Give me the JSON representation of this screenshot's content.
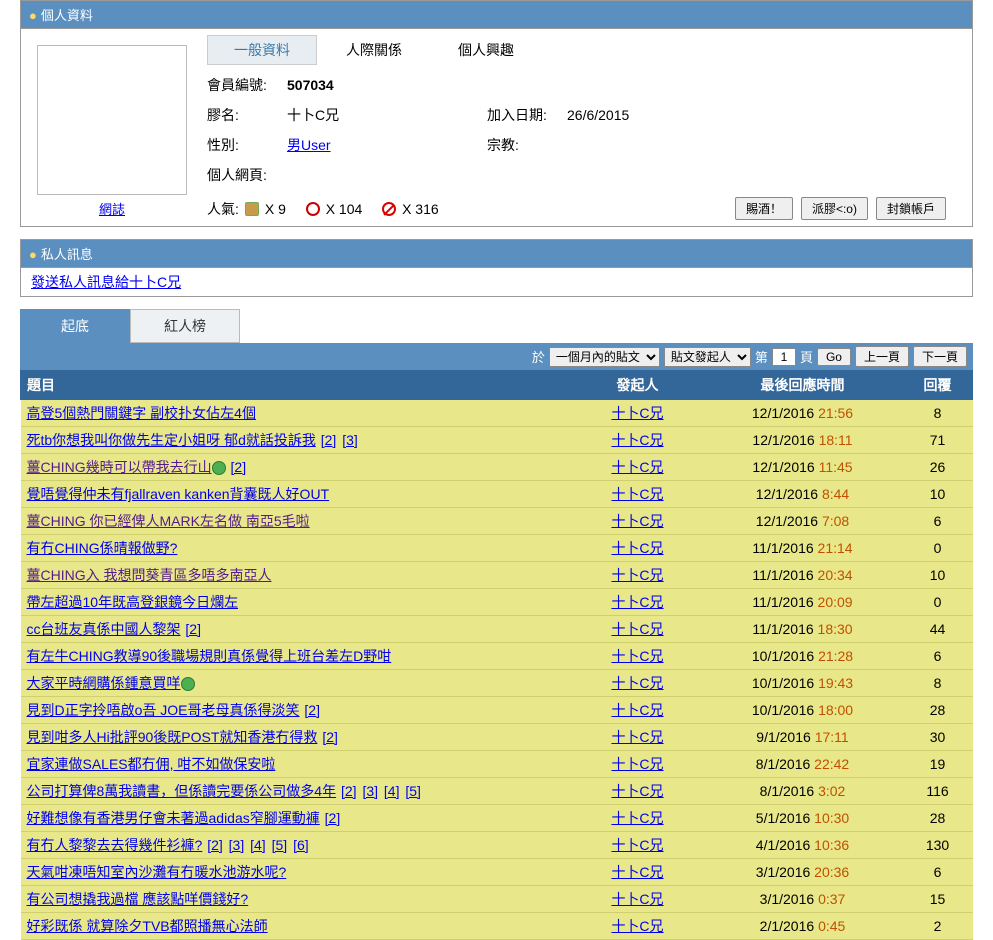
{
  "profile_panel": {
    "header": "個人資料",
    "blog_link": "網誌",
    "tabs": {
      "general": "一般資料",
      "relations": "人際關係",
      "interests": "個人興趣"
    },
    "fields": {
      "member_id_label": "會員編號:",
      "member_id": "507034",
      "nickname_label": "膠名:",
      "nickname": "十卜C兄",
      "joindate_label": "加入日期:",
      "joindate": "26/6/2015",
      "gender_label": "性別:",
      "gender": "男User",
      "religion_label": "宗教:",
      "religion": "",
      "homepage_label": "個人網頁:",
      "popularity_label": "人氣:",
      "thumb_count": "X 9",
      "smiley_count": "X 104",
      "no_count": "X 316"
    },
    "buttons": {
      "gift": "賜酒！",
      "glue": "派膠<:o)",
      "block": "封鎖帳戶"
    }
  },
  "pm_panel": {
    "header": "私人訊息",
    "link": "發送私人訊息給十卜C兄"
  },
  "bottom_tabs": {
    "dig": "起底",
    "hot": "紅人榜"
  },
  "controls": {
    "yu": "於",
    "period_options": [
      "一個月內的貼文"
    ],
    "role_options": [
      "貼文發起人"
    ],
    "page_prefix": "第",
    "page_val": "1",
    "page_suffix": "頁",
    "go": "Go",
    "prev": "上一頁",
    "next": "下一頁"
  },
  "columns": {
    "title": "題目",
    "user": "發起人",
    "time": "最後回應時間",
    "replies": "回覆"
  },
  "username": "十卜C兄",
  "posts": [
    {
      "title": "高登5個熱門關鍵字 副校扑女佔左4個",
      "date": "12/1/2016",
      "time": "21:56",
      "replies": 8
    },
    {
      "title": "死tb你想我叫你做先生定小姐呀 郁d就話投訴我",
      "pages": [
        2,
        3
      ],
      "date": "12/1/2016",
      "time": "18:11",
      "replies": 71
    },
    {
      "title": "薑CHING幾時可以帶我去行山",
      "visited": true,
      "emoji": true,
      "pages": [
        2
      ],
      "date": "12/1/2016",
      "time": "11:45",
      "replies": 26
    },
    {
      "title": "覺唔覺得仲未有fjallraven kanken背囊既人好OUT",
      "date": "12/1/2016",
      "time": "8:44",
      "replies": 10
    },
    {
      "title": "薑CHING 你已經俾人MARK左名做 南亞5毛啦",
      "visited": true,
      "date": "12/1/2016",
      "time": "7:08",
      "replies": 6
    },
    {
      "title": "有冇CHING係晴報做野?",
      "date": "11/1/2016",
      "time": "21:14",
      "replies": 0
    },
    {
      "title": "薑CHING入 我想問葵青區多唔多南亞人",
      "visited": true,
      "date": "11/1/2016",
      "time": "20:34",
      "replies": 10
    },
    {
      "title": "帶左超過10年既高登銀鏡今日爛左",
      "date": "11/1/2016",
      "time": "20:09",
      "replies": 0
    },
    {
      "title": "cc台班友真係中國人黎架",
      "pages": [
        2
      ],
      "date": "11/1/2016",
      "time": "18:30",
      "replies": 44
    },
    {
      "title": "有左牛CHING教導90後職場規則真係覺得上班台差左D野咁",
      "date": "10/1/2016",
      "time": "21:28",
      "replies": 6
    },
    {
      "title": "大家平時網購係鍾意買咩",
      "emoji": true,
      "date": "10/1/2016",
      "time": "19:43",
      "replies": 8
    },
    {
      "title": "見到D正字拎唔啟o吾 JOE哥老母真係得淡笑",
      "pages": [
        2
      ],
      "date": "10/1/2016",
      "time": "18:00",
      "replies": 28
    },
    {
      "title": "見到咁多人Hi批評90後既POST就知香港冇得救",
      "pages": [
        2
      ],
      "date": "9/1/2016",
      "time": "17:11",
      "replies": 30
    },
    {
      "title": "宜家連做SALES都冇佣, 咁不如做保安啦",
      "date": "8/1/2016",
      "time": "22:42",
      "replies": 19
    },
    {
      "title": "公司打算俾8萬我讀書，但係讀完要係公司做多4年",
      "pages": [
        2,
        3,
        4,
        5
      ],
      "date": "8/1/2016",
      "time": "3:02",
      "replies": 116
    },
    {
      "title": "好難想像有香港男仔會未著過adidas窄腳運動褲",
      "pages": [
        2
      ],
      "date": "5/1/2016",
      "time": "10:30",
      "replies": 28
    },
    {
      "title": "有冇人黎黎去去得幾件衫褲?",
      "pages": [
        2,
        3,
        4,
        5,
        6
      ],
      "date": "4/1/2016",
      "time": "10:36",
      "replies": 130
    },
    {
      "title": "天氣咁凍唔知室內沙灘有冇暖水池游水呢?",
      "date": "3/1/2016",
      "time": "20:36",
      "replies": 6
    },
    {
      "title": "有公司想撬我過檔 應該點咩價錢好?",
      "date": "3/1/2016",
      "time": "0:37",
      "replies": 15
    },
    {
      "title": "好彩既係 就算除夕TVB都照播無心法師",
      "date": "2/1/2016",
      "time": "0:45",
      "replies": 2
    }
  ]
}
